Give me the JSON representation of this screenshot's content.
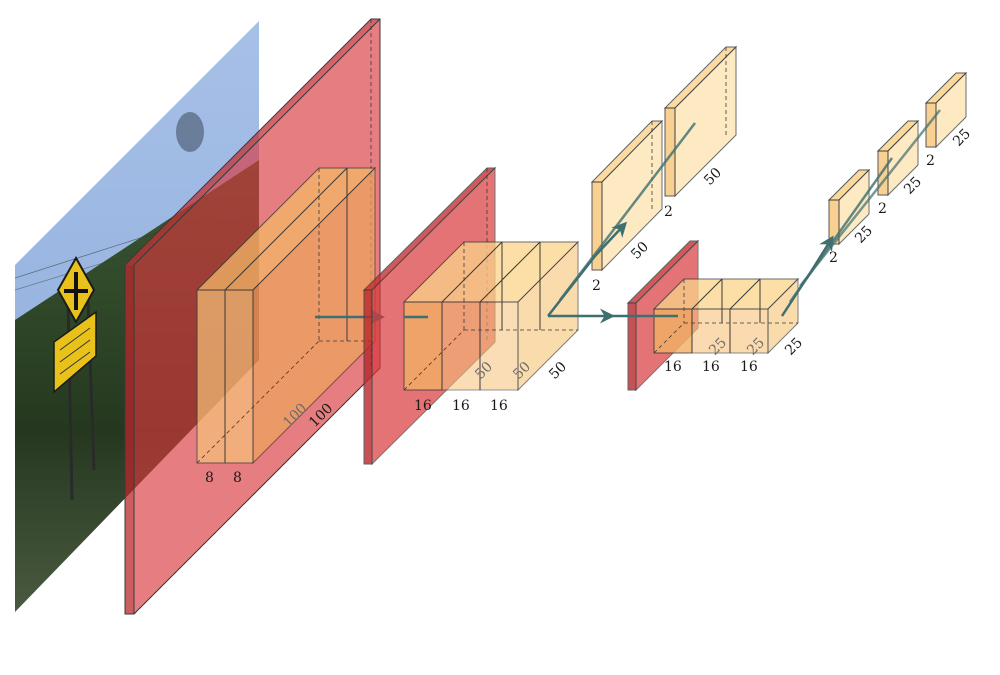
{
  "colors": {
    "feature_map": "#fbd38a",
    "feature_map_dark": "#f0b25c",
    "pool_plane": "#d9383c",
    "arrow": "#3f6f6f",
    "sky_top": "#9bb7e3",
    "sky_bottom": "#8fb0df",
    "ground_top": "#2f4f2a",
    "ground_bottom": "#1d2a18",
    "sign": "#e8c21a"
  },
  "icons": {
    "input_image": "photo-of-road-signs",
    "crossroad_sign": "cross-road-warning-sign-icon"
  },
  "labels": {
    "block1": {
      "depth_a": "8",
      "depth_b": "8",
      "size_a": "100",
      "size_b": "100"
    },
    "block2": {
      "depth_a": "16",
      "depth_b": "16",
      "depth_c": "16",
      "size_a": "50",
      "size_b": "50",
      "size_c": "50"
    },
    "block3": {
      "depth_a": "16",
      "depth_b": "16",
      "depth_c": "16",
      "size_a": "25",
      "size_b": "25",
      "size_c": "25"
    },
    "branch_top": {
      "depth_a": "2",
      "depth_b": "2",
      "size_a": "50",
      "size_b": "50"
    },
    "branch_small": {
      "depth_a": "2",
      "depth_b": "2",
      "depth_c": "2",
      "size_a": "25",
      "size_b": "25",
      "size_c": "25"
    }
  }
}
